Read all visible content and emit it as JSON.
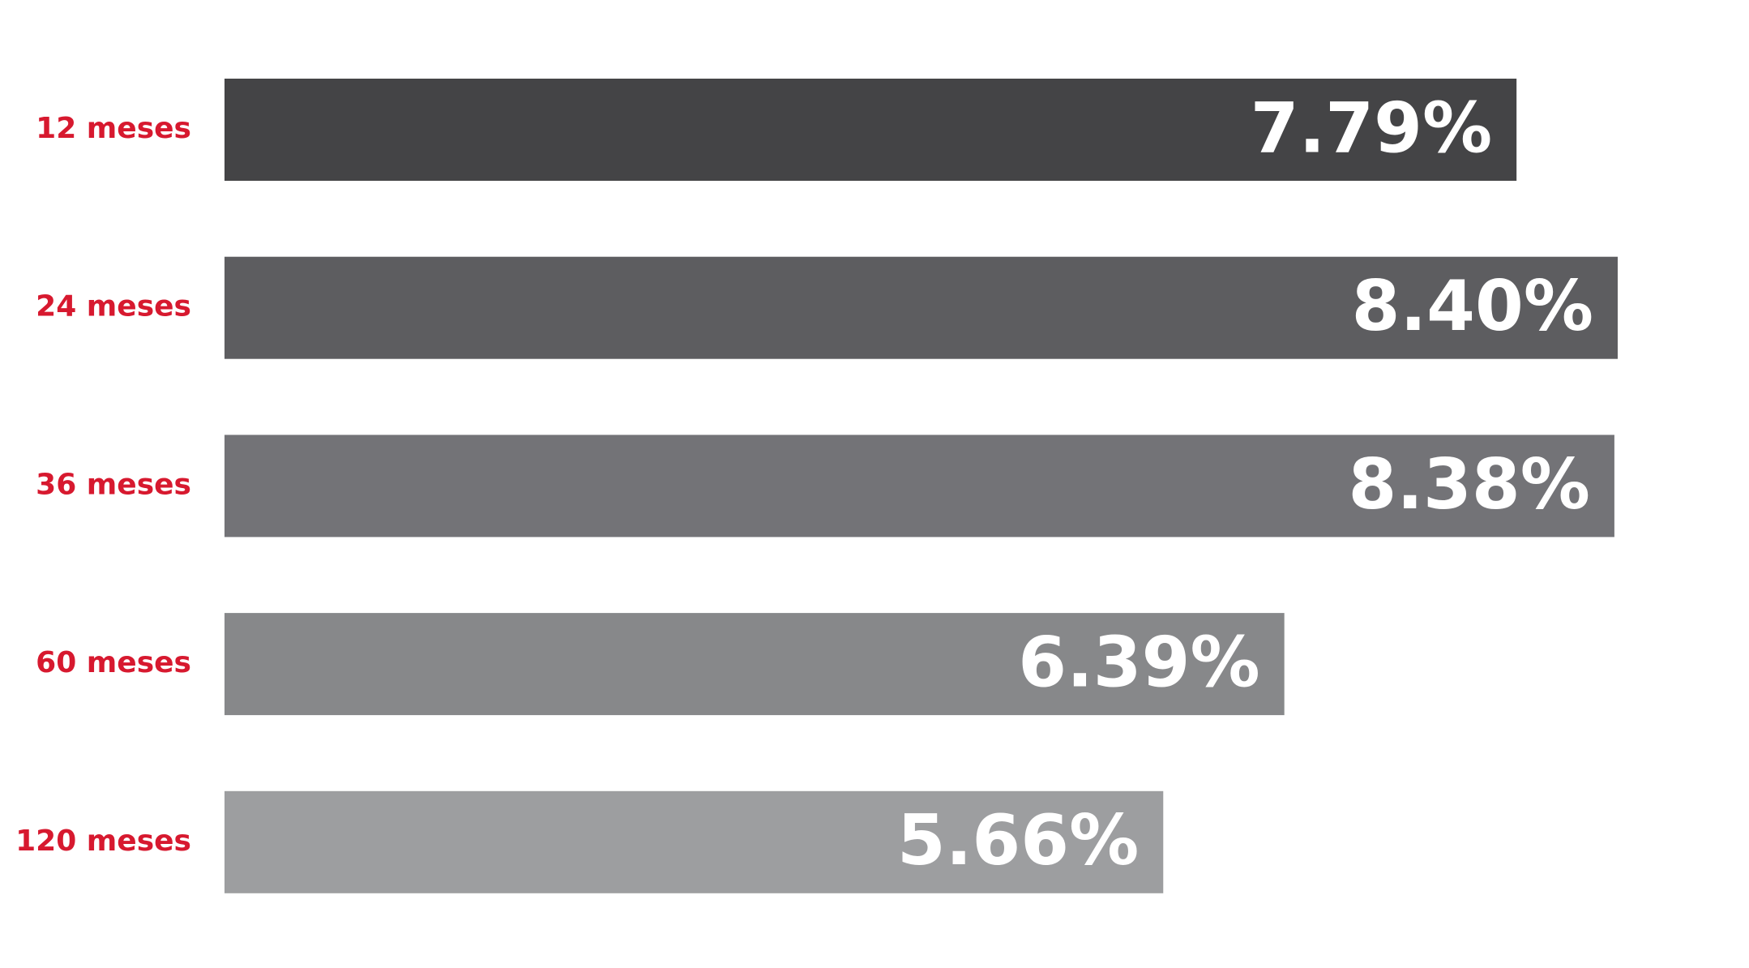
{
  "chart_data": {
    "type": "bar",
    "orientation": "horizontal",
    "categories": [
      "12 meses",
      "24 meses",
      "36 meses",
      "60 meses",
      "120 meses"
    ],
    "values": [
      7.79,
      8.4,
      8.38,
      6.39,
      5.66
    ],
    "value_labels": [
      "7.79%",
      "8.40%",
      "8.38%",
      "6.39%",
      "5.66%"
    ],
    "colors": [
      "#444446",
      "#5d5d60",
      "#737377",
      "#87888a",
      "#9d9ea0"
    ],
    "label_color": "#d7192f"
  }
}
